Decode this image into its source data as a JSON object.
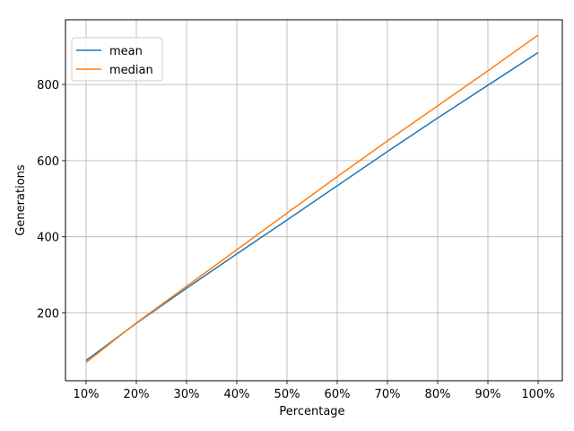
{
  "chart_data": {
    "type": "line",
    "categories": [
      "10%",
      "20%",
      "30%",
      "40%",
      "50%",
      "60%",
      "70%",
      "80%",
      "90%",
      "100%"
    ],
    "series": [
      {
        "name": "mean",
        "color": "#1f77b4",
        "values": [
          75,
          173,
          265,
          355,
          444,
          534,
          624,
          712,
          798,
          884
        ]
      },
      {
        "name": "median",
        "color": "#ff7f0e",
        "values": [
          70,
          174,
          270,
          366,
          462,
          558,
          652,
          744,
          836,
          930
        ]
      }
    ],
    "title": "",
    "xlabel": "Percentage",
    "ylabel": "Generations",
    "ylim": [
      22,
      970
    ],
    "yticks": [
      200,
      400,
      600,
      800
    ],
    "grid": true,
    "legend": "upper-left"
  }
}
